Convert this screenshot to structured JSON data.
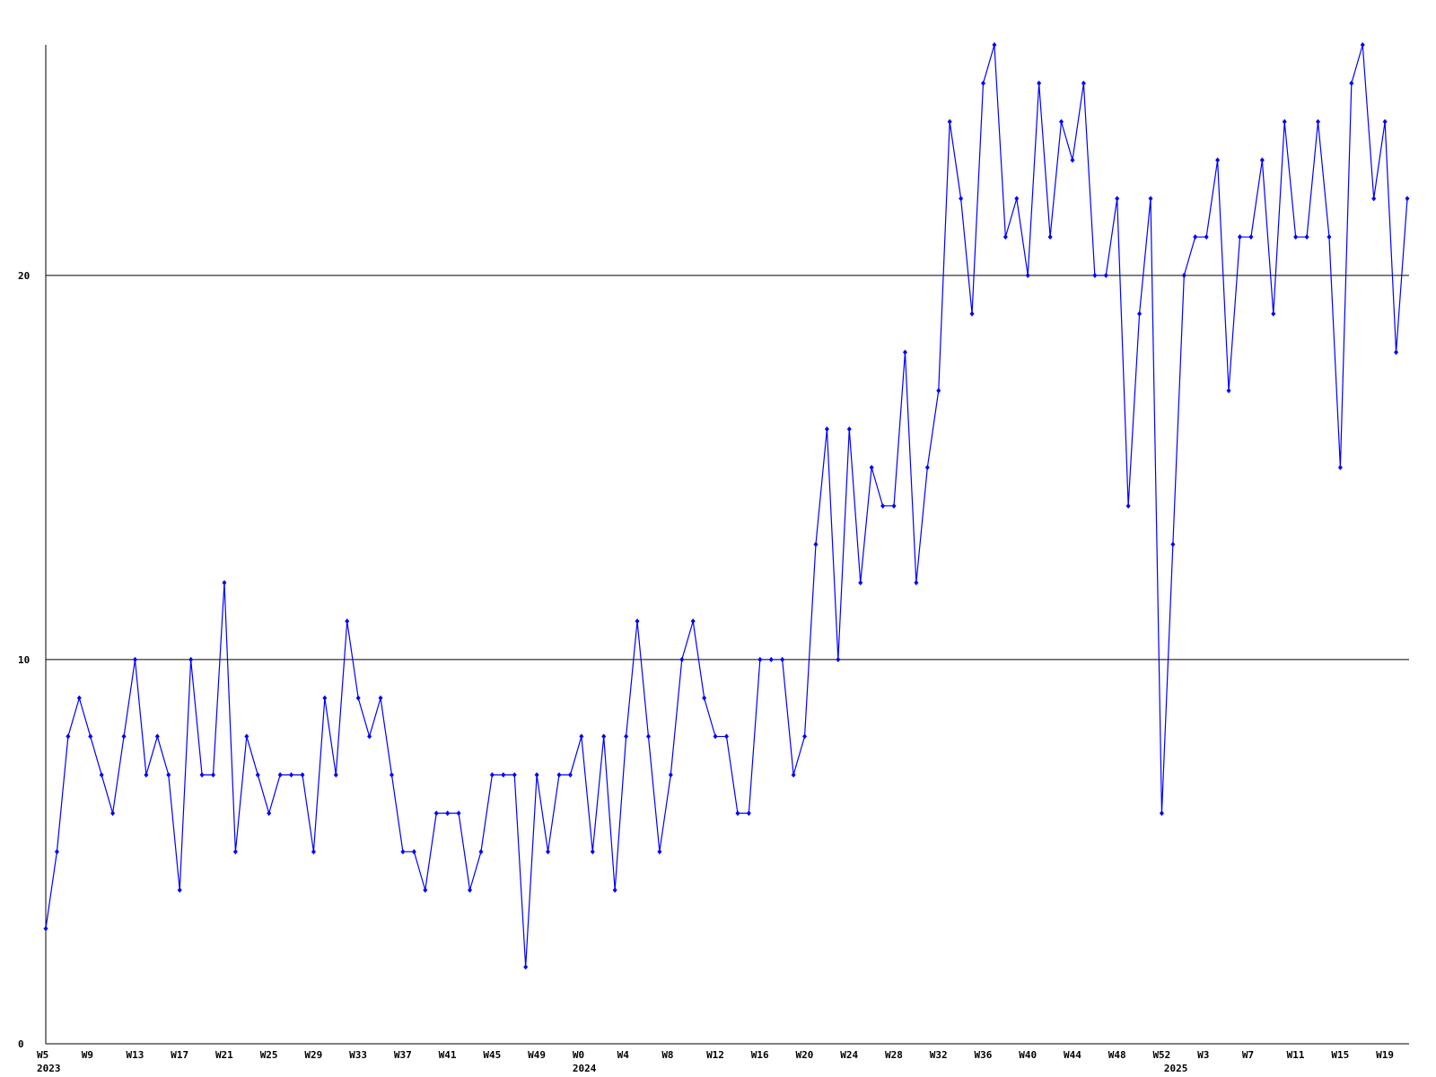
{
  "chart_data": {
    "type": "line",
    "categories": [
      "W5",
      null,
      null,
      null,
      "W9",
      null,
      null,
      null,
      "W13",
      null,
      null,
      null,
      "W17",
      null,
      null,
      null,
      "W21",
      null,
      null,
      null,
      "W25",
      null,
      null,
      null,
      "W29",
      null,
      null,
      null,
      "W33",
      null,
      null,
      null,
      "W37",
      null,
      null,
      null,
      "W41",
      null,
      null,
      null,
      "W45",
      null,
      null,
      null,
      "W49",
      null,
      null,
      null,
      "W0",
      null,
      null,
      null,
      "W4",
      null,
      null,
      null,
      "W8",
      null,
      null,
      null,
      "W12",
      null,
      null,
      null,
      "W16",
      null,
      null,
      null,
      "W20",
      null,
      null,
      null,
      "W24",
      null,
      null,
      null,
      "W28",
      null,
      null,
      null,
      "W32",
      null,
      null,
      null,
      "W36",
      null,
      null,
      null,
      "W40",
      null,
      null,
      null,
      "W44",
      null,
      null,
      null,
      "W48",
      null,
      null,
      null,
      "W52",
      null,
      null,
      null,
      "W3",
      null,
      null,
      null,
      "W7",
      null,
      null,
      null,
      "W11",
      null,
      null,
      null,
      "W15",
      null,
      null,
      null,
      "W19",
      null,
      null
    ],
    "x_year_labels": {
      "0": "2023",
      "48": "2024",
      "101": "2025"
    },
    "series": [
      {
        "color": "#0000ff",
        "values": [
          3,
          5,
          8,
          9,
          8,
          7,
          6,
          8,
          10,
          7,
          8,
          7,
          4,
          10,
          7,
          7,
          12,
          5,
          8,
          7,
          6,
          7,
          7,
          7,
          5,
          9,
          7,
          11,
          9,
          8,
          9,
          7,
          5,
          5,
          4,
          6,
          6,
          6,
          4,
          5,
          7,
          7,
          7,
          2,
          7,
          5,
          7,
          7,
          8,
          5,
          8,
          4,
          8,
          11,
          8,
          5,
          7,
          10,
          11,
          9,
          8,
          8,
          6,
          6,
          10,
          10,
          10,
          7,
          8,
          13,
          16,
          10,
          16,
          12,
          15,
          14,
          14,
          18,
          12,
          15,
          17,
          24,
          22,
          19,
          25,
          26,
          21,
          22,
          20,
          25,
          21,
          24,
          23,
          25,
          20,
          20,
          22,
          14,
          19,
          22,
          6,
          13,
          20,
          21,
          21,
          23,
          17,
          21,
          21,
          23,
          19,
          24,
          21,
          21,
          24,
          21,
          15,
          25,
          26,
          22,
          24,
          18,
          22
        ]
      }
    ],
    "ylim": [
      0,
      26
    ],
    "yticks": [
      0,
      10,
      20
    ],
    "grid": true
  }
}
